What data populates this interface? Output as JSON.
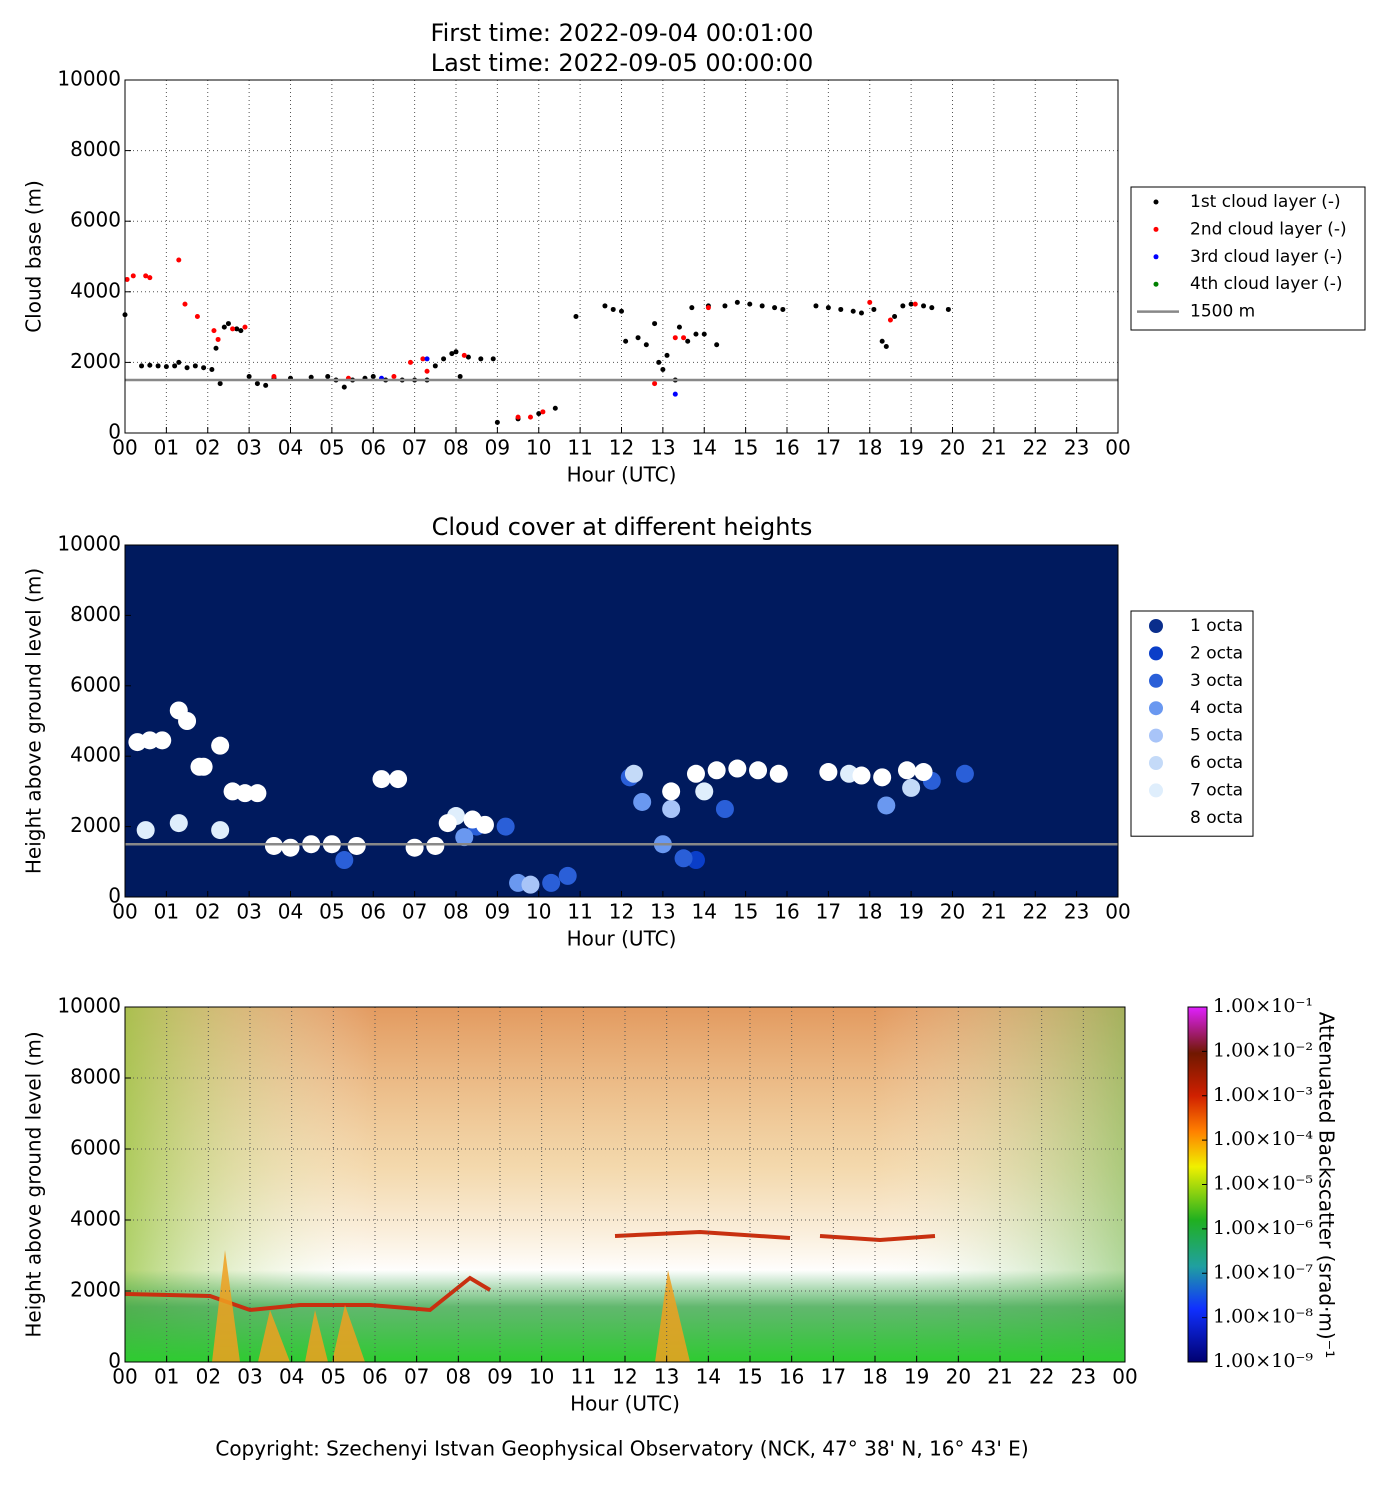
{
  "chart_data": [
    {
      "type": "scatter",
      "title": [
        "First time: 2022-09-04 00:01:00",
        "Last time: 2022-09-05 00:00:00"
      ],
      "xlabel": "Hour (UTC)",
      "ylabel": "Cloud base (m)",
      "xlim": [
        0,
        24
      ],
      "ylim": [
        0,
        10000
      ],
      "xticks": [
        {
          "value": 0,
          "label": "00"
        },
        {
          "value": 1,
          "label": "01"
        },
        {
          "value": 2,
          "label": "02"
        },
        {
          "value": 3,
          "label": "03"
        },
        {
          "value": 4,
          "label": "04"
        },
        {
          "value": 5,
          "label": "05"
        },
        {
          "value": 6,
          "label": "06"
        },
        {
          "value": 7,
          "label": "07"
        },
        {
          "value": 8,
          "label": "08"
        },
        {
          "value": 9,
          "label": "09"
        },
        {
          "value": 10,
          "label": "10"
        },
        {
          "value": 11,
          "label": "11"
        },
        {
          "value": 12,
          "label": "12"
        },
        {
          "value": 13,
          "label": "13"
        },
        {
          "value": 14,
          "label": "14"
        },
        {
          "value": 15,
          "label": "15"
        },
        {
          "value": 16,
          "label": "16"
        },
        {
          "value": 17,
          "label": "17"
        },
        {
          "value": 18,
          "label": "18"
        },
        {
          "value": 19,
          "label": "19"
        },
        {
          "value": 20,
          "label": "20"
        },
        {
          "value": 21,
          "label": "21"
        },
        {
          "value": 22,
          "label": "22"
        },
        {
          "value": 23,
          "label": "23"
        },
        {
          "value": 24,
          "label": "00"
        }
      ],
      "yticks": [
        0,
        2000,
        4000,
        6000,
        8000,
        10000
      ],
      "grid": true,
      "legend": "right",
      "hline": {
        "value": 1500,
        "label": "1500 m",
        "color": "#888888"
      },
      "series": [
        {
          "name": "1st cloud layer (-)",
          "color": "#000000",
          "x": [
            0.0,
            0.4,
            0.6,
            0.8,
            1.0,
            1.2,
            1.3,
            1.5,
            1.7,
            1.9,
            2.1,
            2.2,
            2.3,
            2.4,
            2.5,
            2.7,
            2.8,
            3.0,
            3.2,
            3.4,
            3.6,
            4.0,
            4.5,
            4.9,
            5.1,
            5.3,
            5.5,
            5.8,
            6.0,
            6.3,
            6.7,
            7.0,
            7.3,
            7.5,
            7.7,
            7.9,
            8.0,
            8.1,
            8.3,
            8.6,
            8.9,
            9.0,
            9.5,
            10.0,
            10.4,
            10.9,
            11.6,
            11.8,
            12.0,
            12.1,
            12.4,
            12.6,
            12.8,
            12.9,
            13.0,
            13.1,
            13.3,
            13.4,
            13.6,
            13.7,
            13.8,
            14.0,
            14.1,
            14.3,
            14.5,
            14.8,
            15.1,
            15.4,
            15.7,
            15.9,
            16.7,
            17.0,
            17.3,
            17.6,
            17.8,
            18.1,
            18.3,
            18.4,
            18.6,
            18.8,
            19.0,
            19.3,
            19.5,
            19.9
          ],
          "values": [
            3350,
            1900,
            1920,
            1900,
            1880,
            1900,
            2000,
            1850,
            1900,
            1850,
            1800,
            2400,
            1400,
            3000,
            3100,
            2950,
            2900,
            1600,
            1400,
            1350,
            1550,
            1550,
            1580,
            1600,
            1500,
            1300,
            1500,
            1550,
            1600,
            1500,
            1500,
            1500,
            1500,
            1900,
            2100,
            2250,
            2300,
            1600,
            2150,
            2100,
            2100,
            300,
            400,
            550,
            700,
            3300,
            3600,
            3500,
            3450,
            2600,
            2700,
            2500,
            3100,
            2000,
            1800,
            2200,
            1500,
            3000,
            2600,
            3550,
            2800,
            2800,
            3600,
            2500,
            3600,
            3700,
            3650,
            3600,
            3550,
            3500,
            3600,
            3550,
            3500,
            3450,
            3400,
            3500,
            2600,
            2450,
            3300,
            3600,
            3650,
            3600,
            3550,
            3500
          ]
        },
        {
          "name": "2nd cloud layer (-)",
          "color": "#ff0000",
          "x": [
            0.05,
            0.2,
            0.5,
            0.6,
            1.3,
            1.45,
            1.75,
            2.15,
            2.25,
            2.6,
            2.9,
            3.6,
            5.4,
            6.5,
            6.9,
            7.2,
            7.3,
            8.2,
            9.5,
            9.8,
            10.1,
            12.8,
            13.3,
            13.5,
            14.1,
            18.0,
            18.5,
            19.1
          ],
          "values": [
            4350,
            4450,
            4450,
            4400,
            4900,
            3650,
            3300,
            2900,
            2650,
            2950,
            3000,
            1600,
            1550,
            1600,
            2000,
            2100,
            1750,
            2200,
            450,
            450,
            600,
            1400,
            2700,
            2700,
            3550,
            3700,
            3200,
            3650
          ]
        },
        {
          "name": "3rd cloud layer (-)",
          "color": "#0000ff",
          "x": [
            6.2,
            7.3,
            13.3
          ],
          "values": [
            1550,
            2100,
            1100
          ]
        },
        {
          "name": "4th cloud layer (-)",
          "color": "#008000",
          "x": [],
          "values": []
        }
      ]
    },
    {
      "type": "scatter",
      "title": "Cloud cover at different heights",
      "xlabel": "Hour (UTC)",
      "ylabel": "Height above ground level (m)",
      "xlim": [
        0,
        24
      ],
      "ylim": [
        0,
        10000
      ],
      "xticks": [
        {
          "value": 0,
          "label": "00"
        },
        {
          "value": 1,
          "label": "01"
        },
        {
          "value": 2,
          "label": "02"
        },
        {
          "value": 3,
          "label": "03"
        },
        {
          "value": 4,
          "label": "04"
        },
        {
          "value": 5,
          "label": "05"
        },
        {
          "value": 6,
          "label": "06"
        },
        {
          "value": 7,
          "label": "07"
        },
        {
          "value": 8,
          "label": "08"
        },
        {
          "value": 9,
          "label": "09"
        },
        {
          "value": 10,
          "label": "10"
        },
        {
          "value": 11,
          "label": "11"
        },
        {
          "value": 12,
          "label": "12"
        },
        {
          "value": 13,
          "label": "13"
        },
        {
          "value": 14,
          "label": "14"
        },
        {
          "value": 15,
          "label": "15"
        },
        {
          "value": 16,
          "label": "16"
        },
        {
          "value": 17,
          "label": "17"
        },
        {
          "value": 18,
          "label": "18"
        },
        {
          "value": 19,
          "label": "19"
        },
        {
          "value": 20,
          "label": "20"
        },
        {
          "value": 21,
          "label": "21"
        },
        {
          "value": 22,
          "label": "22"
        },
        {
          "value": 23,
          "label": "23"
        },
        {
          "value": 24,
          "label": "00"
        }
      ],
      "yticks": [
        0,
        2000,
        4000,
        6000,
        8000,
        10000
      ],
      "grid": false,
      "legend": "right",
      "background": "#001a5e",
      "hline": {
        "value": 1500,
        "color": "#888888"
      },
      "series": [
        {
          "name": "1 octa",
          "color": "#0a2e8c",
          "x": [],
          "values": []
        },
        {
          "name": "2 octa",
          "color": "#0a3ec8",
          "x": [
            13.8
          ],
          "values": [
            1050
          ]
        },
        {
          "name": "3 octa",
          "color": "#2a5fd8",
          "x": [
            8.5,
            9.2,
            10.3,
            10.7,
            12.2,
            13.5,
            14.5,
            19.5,
            20.3,
            5.3
          ],
          "values": [
            2000,
            2000,
            400,
            600,
            3400,
            1100,
            2500,
            3300,
            3500,
            1050
          ]
        },
        {
          "name": "4 octa",
          "color": "#6a98f0",
          "x": [
            12.5,
            13.0,
            18.4,
            9.5,
            8.2
          ],
          "values": [
            2700,
            1500,
            2600,
            400,
            1700
          ]
        },
        {
          "name": "5 octa",
          "color": "#a8c4f8",
          "x": [
            9.8,
            13.2
          ],
          "values": [
            350,
            2500
          ]
        },
        {
          "name": "6 octa",
          "color": "#c4daf8",
          "x": [
            12.3,
            19.0
          ],
          "values": [
            3500,
            3100
          ]
        },
        {
          "name": "7 octa",
          "color": "#dfeefc",
          "x": [
            0.5,
            1.3,
            2.3,
            8.0,
            14.0,
            17.5
          ],
          "values": [
            1900,
            2100,
            1900,
            2300,
            3000,
            3500
          ]
        },
        {
          "name": "8 octa",
          "color": "#ffffff",
          "x": [
            0.3,
            0.6,
            0.9,
            1.3,
            1.5,
            1.8,
            1.9,
            2.3,
            2.6,
            2.9,
            3.2,
            3.6,
            4.0,
            4.5,
            5.0,
            5.6,
            6.2,
            6.6,
            7.0,
            7.5,
            7.8,
            8.4,
            8.7,
            13.2,
            13.8,
            14.3,
            14.8,
            15.3,
            15.8,
            17.0,
            17.8,
            18.3,
            18.9,
            19.3
          ],
          "values": [
            4400,
            4450,
            4450,
            5300,
            5000,
            3700,
            3700,
            4300,
            3000,
            2950,
            2950,
            1450,
            1400,
            1500,
            1500,
            1450,
            3350,
            3350,
            1400,
            1450,
            2100,
            2200,
            2050,
            3000,
            3500,
            3600,
            3650,
            3600,
            3500,
            3550,
            3450,
            3400,
            3600,
            3550
          ]
        }
      ]
    },
    {
      "type": "heatmap",
      "xlabel": "Hour (UTC)",
      "ylabel": "Height above ground level (m)",
      "xlim": [
        0,
        24
      ],
      "ylim": [
        0,
        10000
      ],
      "xticks": [
        {
          "value": 0,
          "label": "00"
        },
        {
          "value": 1,
          "label": "01"
        },
        {
          "value": 2,
          "label": "02"
        },
        {
          "value": 3,
          "label": "03"
        },
        {
          "value": 4,
          "label": "04"
        },
        {
          "value": 5,
          "label": "05"
        },
        {
          "value": 6,
          "label": "06"
        },
        {
          "value": 7,
          "label": "07"
        },
        {
          "value": 8,
          "label": "08"
        },
        {
          "value": 9,
          "label": "09"
        },
        {
          "value": 10,
          "label": "10"
        },
        {
          "value": 11,
          "label": "11"
        },
        {
          "value": 12,
          "label": "12"
        },
        {
          "value": 13,
          "label": "13"
        },
        {
          "value": 14,
          "label": "14"
        },
        {
          "value": 15,
          "label": "15"
        },
        {
          "value": 16,
          "label": "16"
        },
        {
          "value": 17,
          "label": "17"
        },
        {
          "value": 18,
          "label": "18"
        },
        {
          "value": 19,
          "label": "19"
        },
        {
          "value": 20,
          "label": "20"
        },
        {
          "value": 21,
          "label": "21"
        },
        {
          "value": 22,
          "label": "22"
        },
        {
          "value": 23,
          "label": "23"
        },
        {
          "value": 24,
          "label": "00"
        }
      ],
      "yticks": [
        0,
        2000,
        4000,
        6000,
        8000,
        10000
      ],
      "grid": true,
      "colorbar": {
        "label": "Attenuated Backscatter (srad·m)⁻¹",
        "log": true,
        "lim": [
          1e-09,
          0.1
        ],
        "ticks": [
          {
            "value": 1e-09,
            "label": "1.00×10⁻⁹"
          },
          {
            "value": 1e-08,
            "label": "1.00×10⁻⁸"
          },
          {
            "value": 1e-07,
            "label": "1.00×10⁻⁷"
          },
          {
            "value": 1e-06,
            "label": "1.00×10⁻⁶"
          },
          {
            "value": 1e-05,
            "label": "1.00×10⁻⁵"
          },
          {
            "value": 0.0001,
            "label": "1.00×10⁻⁴"
          },
          {
            "value": 0.001,
            "label": "1.00×10⁻³"
          },
          {
            "value": 0.01,
            "label": "1.00×10⁻²"
          },
          {
            "value": 0.1,
            "label": "1.00×10⁻¹"
          }
        ]
      }
    }
  ],
  "footer": "Copyright: Szechenyi Istvan Geophysical Observatory (NCK, 47° 38' N, 16° 43' E)"
}
